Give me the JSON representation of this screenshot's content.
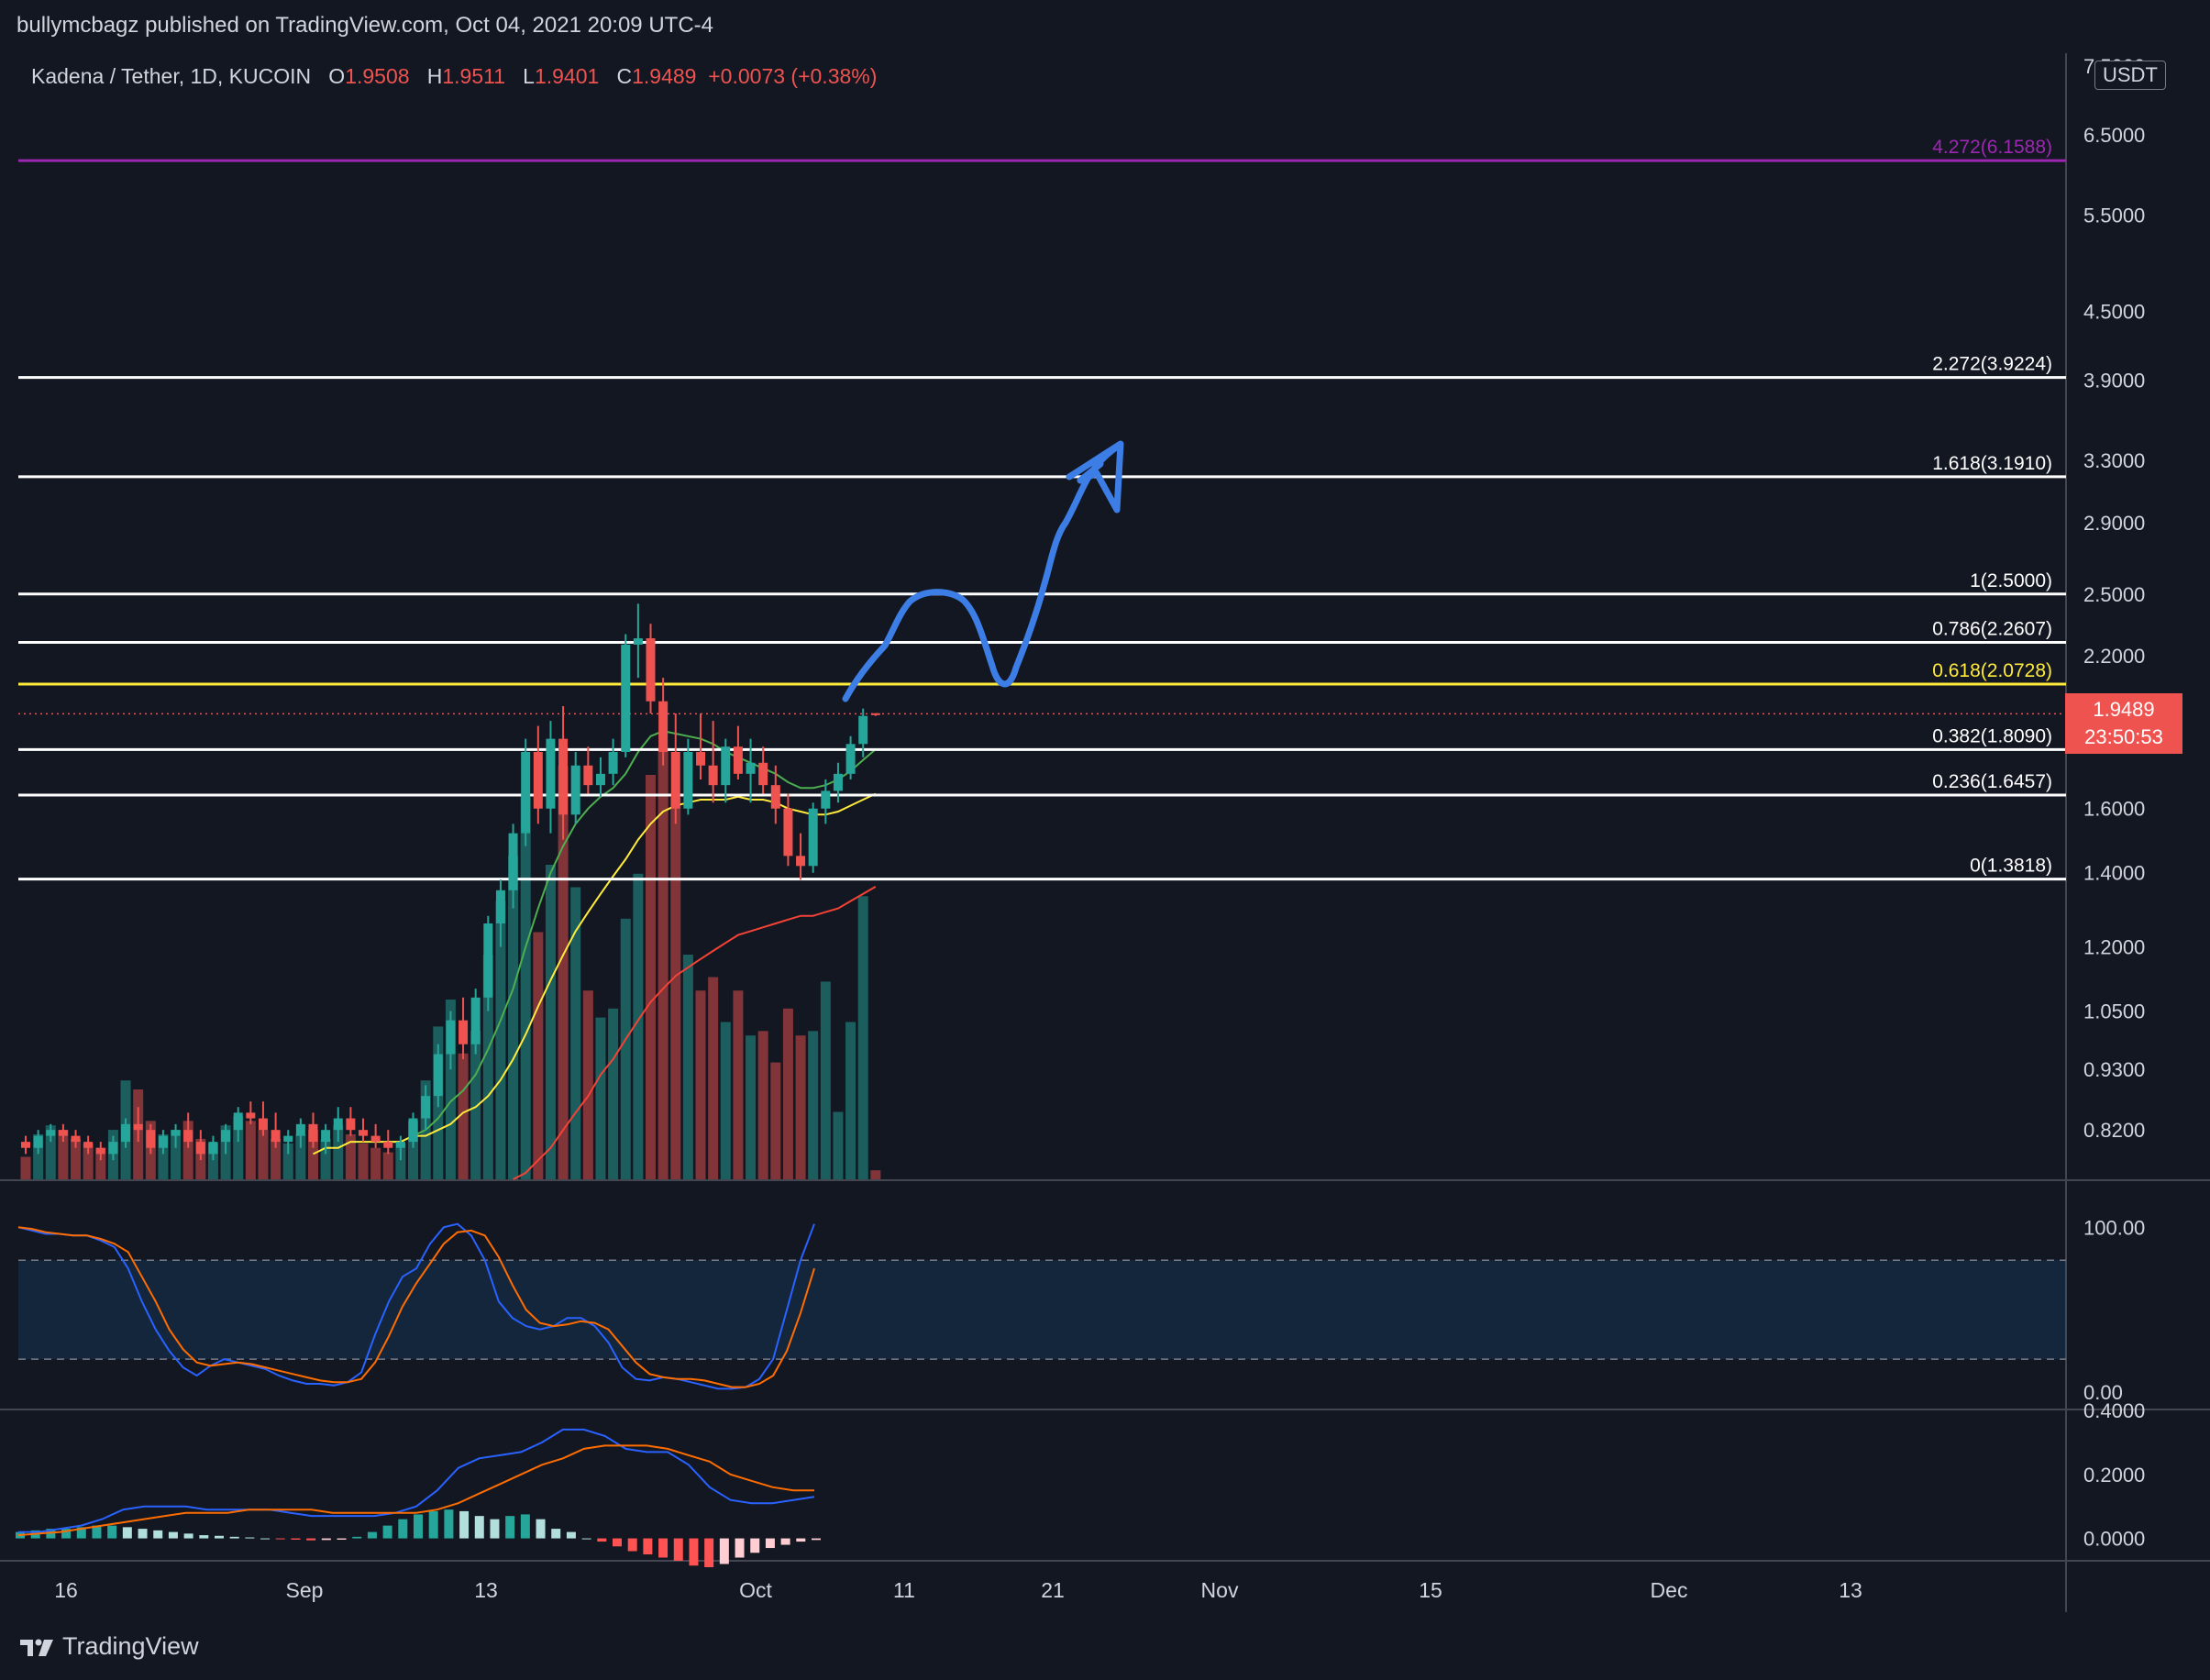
{
  "header": {
    "published_by": "bullymcbagz published on TradingView.com, Oct 04, 2021 20:09 UTC-4"
  },
  "legend": {
    "symbol": "Kadena / Tether, 1D, KUCOIN",
    "o_label": "O",
    "o_value": "1.9508",
    "h_label": "H",
    "h_value": "1.9511",
    "l_label": "L",
    "l_value": "1.9401",
    "c_label": "C",
    "c_value": "1.9489",
    "change": "+0.0073 (+0.38%)"
  },
  "currency_badge": "USDT",
  "price_tag": {
    "price": "1.9489",
    "countdown": "23:50:53"
  },
  "footer": {
    "brand": "TradingView"
  },
  "colors": {
    "background": "#131722",
    "up": "#26a69a",
    "down": "#ef5350",
    "fib_white": "#ffffff",
    "fib_yellow": "#ffeb3b",
    "fib_purple": "#9c27b0",
    "arrow": "#3d7ee6",
    "stoch_k": "#2962ff",
    "stoch_d": "#ff6d00"
  },
  "chart_data": [
    {
      "type": "candlestick",
      "title": "Kadena / Tether, 1D, KUCOIN",
      "y_scale": "log",
      "ylim": [
        0.74,
        7.7
      ],
      "y_ticks": [
        "7.5000",
        "6.5000",
        "5.5000",
        "4.5000",
        "3.9000",
        "3.3000",
        "2.9000",
        "2.5000",
        "2.2000",
        "1.6000",
        "1.4000",
        "1.2000",
        "1.0500",
        "0.9300",
        "0.8200"
      ],
      "x_labels": [
        "16",
        "Sep",
        "13",
        "Oct",
        "11",
        "21",
        "Nov",
        "15",
        "Dec",
        "13"
      ],
      "fib_levels": [
        {
          "label": "4.272(6.1588)",
          "value": 6.1588,
          "color": "purple"
        },
        {
          "label": "2.272(3.9224)",
          "value": 3.9224,
          "color": "white"
        },
        {
          "label": "1.618(3.1910)",
          "value": 3.191,
          "color": "white"
        },
        {
          "label": "1(2.5000)",
          "value": 2.5,
          "color": "white"
        },
        {
          "label": "0.786(2.2607)",
          "value": 2.2607,
          "color": "white"
        },
        {
          "label": "0.618(2.0728)",
          "value": 2.0728,
          "color": "yellow"
        },
        {
          "label": "0.382(1.8090)",
          "value": 1.809,
          "color": "white"
        },
        {
          "label": "0.236(1.6457)",
          "value": 1.6457,
          "color": "white"
        },
        {
          "label": "0(1.3818)",
          "value": 1.3818,
          "color": "white"
        }
      ],
      "candles": [
        [
          0.8,
          0.81,
          0.78,
          0.79
        ],
        [
          0.79,
          0.82,
          0.78,
          0.81
        ],
        [
          0.81,
          0.83,
          0.8,
          0.82
        ],
        [
          0.82,
          0.83,
          0.8,
          0.81
        ],
        [
          0.81,
          0.82,
          0.79,
          0.8
        ],
        [
          0.8,
          0.81,
          0.78,
          0.79
        ],
        [
          0.79,
          0.8,
          0.77,
          0.78
        ],
        [
          0.78,
          0.81,
          0.77,
          0.8
        ],
        [
          0.8,
          0.84,
          0.79,
          0.83
        ],
        [
          0.83,
          0.86,
          0.8,
          0.82
        ],
        [
          0.82,
          0.83,
          0.78,
          0.79
        ],
        [
          0.79,
          0.82,
          0.78,
          0.81
        ],
        [
          0.81,
          0.83,
          0.79,
          0.82
        ],
        [
          0.82,
          0.85,
          0.79,
          0.8
        ],
        [
          0.8,
          0.82,
          0.77,
          0.78
        ],
        [
          0.78,
          0.81,
          0.77,
          0.8
        ],
        [
          0.8,
          0.83,
          0.78,
          0.82
        ],
        [
          0.82,
          0.86,
          0.8,
          0.85
        ],
        [
          0.85,
          0.87,
          0.83,
          0.84
        ],
        [
          0.84,
          0.87,
          0.81,
          0.82
        ],
        [
          0.82,
          0.85,
          0.79,
          0.8
        ],
        [
          0.8,
          0.82,
          0.78,
          0.81
        ],
        [
          0.81,
          0.84,
          0.79,
          0.83
        ],
        [
          0.83,
          0.85,
          0.79,
          0.8
        ],
        [
          0.8,
          0.83,
          0.78,
          0.82
        ],
        [
          0.82,
          0.86,
          0.8,
          0.84
        ],
        [
          0.84,
          0.86,
          0.81,
          0.82
        ],
        [
          0.82,
          0.84,
          0.8,
          0.81
        ],
        [
          0.81,
          0.83,
          0.79,
          0.8
        ],
        [
          0.8,
          0.82,
          0.78,
          0.79
        ],
        [
          0.79,
          0.81,
          0.77,
          0.8
        ],
        [
          0.8,
          0.85,
          0.79,
          0.84
        ],
        [
          0.84,
          0.9,
          0.82,
          0.88
        ],
        [
          0.88,
          0.98,
          0.86,
          0.96
        ],
        [
          0.96,
          1.05,
          0.93,
          1.03
        ],
        [
          1.03,
          1.08,
          0.95,
          0.98
        ],
        [
          0.98,
          1.1,
          0.96,
          1.08
        ],
        [
          1.08,
          1.28,
          1.05,
          1.26
        ],
        [
          1.26,
          1.38,
          1.2,
          1.35
        ],
        [
          1.35,
          1.55,
          1.3,
          1.52
        ],
        [
          1.52,
          1.85,
          1.48,
          1.8
        ],
        [
          1.8,
          1.9,
          1.55,
          1.6
        ],
        [
          1.6,
          1.92,
          1.52,
          1.85
        ],
        [
          1.85,
          1.98,
          1.5,
          1.58
        ],
        [
          1.58,
          1.8,
          1.55,
          1.75
        ],
        [
          1.75,
          1.82,
          1.65,
          1.68
        ],
        [
          1.68,
          1.78,
          1.64,
          1.72
        ],
        [
          1.72,
          1.85,
          1.68,
          1.8
        ],
        [
          1.8,
          2.3,
          1.78,
          2.25
        ],
        [
          2.25,
          2.45,
          2.1,
          2.28
        ],
        [
          2.28,
          2.35,
          1.95,
          2.0
        ],
        [
          2.0,
          2.1,
          1.75,
          1.8
        ],
        [
          1.8,
          1.95,
          1.55,
          1.6
        ],
        [
          1.6,
          1.85,
          1.58,
          1.8
        ],
        [
          1.8,
          1.95,
          1.7,
          1.75
        ],
        [
          1.75,
          1.92,
          1.62,
          1.68
        ],
        [
          1.68,
          1.85,
          1.62,
          1.82
        ],
        [
          1.82,
          1.9,
          1.7,
          1.72
        ],
        [
          1.72,
          1.85,
          1.62,
          1.76
        ],
        [
          1.76,
          1.82,
          1.65,
          1.68
        ],
        [
          1.68,
          1.75,
          1.55,
          1.6
        ],
        [
          1.6,
          1.65,
          1.42,
          1.45
        ],
        [
          1.45,
          1.52,
          1.38,
          1.42
        ],
        [
          1.42,
          1.62,
          1.4,
          1.6
        ],
        [
          1.6,
          1.7,
          1.55,
          1.66
        ],
        [
          1.66,
          1.76,
          1.62,
          1.72
        ],
        [
          1.72,
          1.86,
          1.7,
          1.83
        ],
        [
          1.83,
          1.97,
          1.78,
          1.94
        ],
        [
          1.9508,
          1.9511,
          1.9401,
          1.9489
        ]
      ],
      "volume_relative": [
        0.05,
        0.1,
        0.12,
        0.11,
        0.09,
        0.08,
        0.07,
        0.11,
        0.22,
        0.2,
        0.13,
        0.1,
        0.11,
        0.13,
        0.09,
        0.08,
        0.12,
        0.14,
        0.13,
        0.11,
        0.09,
        0.08,
        0.1,
        0.11,
        0.09,
        0.12,
        0.1,
        0.08,
        0.07,
        0.06,
        0.08,
        0.13,
        0.22,
        0.34,
        0.4,
        0.28,
        0.33,
        0.5,
        0.62,
        0.72,
        0.85,
        0.55,
        0.7,
        0.92,
        0.65,
        0.42,
        0.36,
        0.38,
        0.58,
        0.68,
        0.9,
        0.96,
        0.85,
        0.5,
        0.42,
        0.45,
        0.35,
        0.42,
        0.32,
        0.33,
        0.26,
        0.38,
        0.32,
        0.33,
        0.44,
        0.15,
        0.35,
        0.63,
        0.02
      ],
      "ma_series": [
        {
          "name": "MA short",
          "color": "green",
          "values": [
            null,
            null,
            null,
            null,
            null,
            null,
            null,
            null,
            null,
            null,
            null,
            null,
            null,
            null,
            null,
            null,
            null,
            null,
            null,
            null,
            null,
            null,
            null,
            null,
            null,
            null,
            null,
            null,
            null,
            0.8,
            0.8,
            0.81,
            0.82,
            0.84,
            0.87,
            0.89,
            0.92,
            0.97,
            1.03,
            1.1,
            1.2,
            1.3,
            1.4,
            1.48,
            1.55,
            1.6,
            1.64,
            1.67,
            1.72,
            1.8,
            1.86,
            1.88,
            1.87,
            1.86,
            1.85,
            1.83,
            1.8,
            1.78,
            1.76,
            1.74,
            1.72,
            1.69,
            1.67,
            1.67,
            1.68,
            1.7,
            1.73,
            1.77,
            1.81
          ]
        },
        {
          "name": "MA mid",
          "color": "yellow",
          "values": [
            null,
            null,
            null,
            null,
            null,
            null,
            null,
            null,
            null,
            null,
            null,
            null,
            null,
            null,
            null,
            null,
            null,
            null,
            null,
            null,
            null,
            null,
            null,
            0.78,
            0.79,
            0.79,
            0.8,
            0.8,
            0.8,
            0.8,
            0.8,
            0.81,
            0.81,
            0.82,
            0.83,
            0.85,
            0.86,
            0.88,
            0.91,
            0.95,
            1.0,
            1.06,
            1.12,
            1.18,
            1.24,
            1.29,
            1.34,
            1.39,
            1.44,
            1.5,
            1.55,
            1.59,
            1.61,
            1.62,
            1.63,
            1.63,
            1.63,
            1.64,
            1.63,
            1.63,
            1.62,
            1.6,
            1.59,
            1.58,
            1.58,
            1.59,
            1.61,
            1.63,
            1.65
          ]
        },
        {
          "name": "MA long",
          "color": "red",
          "values": [
            null,
            null,
            null,
            null,
            null,
            null,
            null,
            null,
            null,
            null,
            null,
            null,
            null,
            null,
            null,
            null,
            null,
            null,
            null,
            null,
            null,
            null,
            null,
            null,
            null,
            null,
            null,
            null,
            null,
            null,
            null,
            null,
            null,
            null,
            null,
            null,
            null,
            null,
            null,
            0.74,
            0.75,
            0.77,
            0.79,
            0.82,
            0.85,
            0.88,
            0.92,
            0.95,
            0.99,
            1.03,
            1.07,
            1.1,
            1.13,
            1.15,
            1.17,
            1.19,
            1.21,
            1.23,
            1.24,
            1.25,
            1.26,
            1.27,
            1.28,
            1.28,
            1.29,
            1.3,
            1.32,
            1.34,
            1.36
          ]
        }
      ]
    },
    {
      "type": "line",
      "title": "Stochastic RSI",
      "ylim": [
        -10,
        128
      ],
      "y_ticks": [
        "100.00",
        "0.00"
      ],
      "band": [
        20,
        80
      ],
      "series": [
        {
          "name": "K",
          "values": [
            100,
            98,
            96,
            96,
            95,
            95,
            92,
            88,
            75,
            55,
            38,
            25,
            15,
            10,
            16,
            20,
            18,
            16,
            14,
            10,
            7,
            5,
            5,
            4,
            6,
            12,
            35,
            55,
            70,
            75,
            90,
            100,
            102,
            95,
            80,
            55,
            45,
            40,
            38,
            40,
            45,
            45,
            40,
            30,
            15,
            8,
            7,
            9,
            8,
            6,
            4,
            2,
            2,
            3,
            8,
            20,
            50,
            80,
            102
          ]
        },
        {
          "name": "D",
          "values": [
            100,
            99,
            97,
            96,
            95,
            95,
            93,
            90,
            85,
            70,
            55,
            38,
            26,
            18,
            16,
            17,
            18,
            17,
            15,
            13,
            11,
            9,
            7,
            6,
            6,
            8,
            18,
            34,
            52,
            66,
            78,
            90,
            97,
            98,
            95,
            82,
            65,
            50,
            42,
            40,
            41,
            43,
            42,
            38,
            28,
            18,
            11,
            9,
            8,
            8,
            7,
            5,
            3,
            3,
            5,
            10,
            25,
            48,
            75
          ]
        }
      ]
    },
    {
      "type": "line",
      "title": "MACD",
      "ylim": [
        -0.07,
        0.4
      ],
      "y_ticks": [
        "0.4000",
        "0.2000",
        "0.0000"
      ],
      "series": [
        {
          "name": "MACD",
          "values": [
            0.02,
            0.02,
            0.03,
            0.04,
            0.06,
            0.09,
            0.1,
            0.1,
            0.1,
            0.09,
            0.09,
            0.09,
            0.09,
            0.08,
            0.07,
            0.07,
            0.07,
            0.07,
            0.08,
            0.1,
            0.15,
            0.22,
            0.25,
            0.26,
            0.27,
            0.3,
            0.34,
            0.34,
            0.32,
            0.28,
            0.27,
            0.27,
            0.23,
            0.16,
            0.12,
            0.11,
            0.11,
            0.12,
            0.13
          ]
        },
        {
          "name": "Signal",
          "values": [
            0.01,
            0.015,
            0.02,
            0.03,
            0.04,
            0.05,
            0.06,
            0.07,
            0.08,
            0.08,
            0.08,
            0.09,
            0.09,
            0.09,
            0.09,
            0.08,
            0.08,
            0.08,
            0.08,
            0.08,
            0.09,
            0.11,
            0.14,
            0.17,
            0.2,
            0.23,
            0.25,
            0.28,
            0.29,
            0.29,
            0.29,
            0.28,
            0.26,
            0.24,
            0.2,
            0.18,
            0.16,
            0.15,
            0.15
          ]
        }
      ],
      "histogram": [
        0.02,
        0.025,
        0.03,
        0.03,
        0.035,
        0.04,
        0.04,
        0.035,
        0.03,
        0.025,
        0.02,
        0.015,
        0.01,
        0.008,
        0.005,
        0.003,
        0.0,
        -0.002,
        -0.004,
        -0.006,
        -0.005,
        -0.004,
        0.005,
        0.02,
        0.04,
        0.06,
        0.075,
        0.085,
        0.09,
        0.085,
        0.07,
        0.06,
        0.07,
        0.075,
        0.06,
        0.03,
        0.02,
        0.0,
        -0.01,
        -0.025,
        -0.04,
        -0.05,
        -0.06,
        -0.07,
        -0.085,
        -0.09,
        -0.08,
        -0.06,
        -0.045,
        -0.03,
        -0.02,
        -0.01,
        -0.005
      ]
    }
  ]
}
